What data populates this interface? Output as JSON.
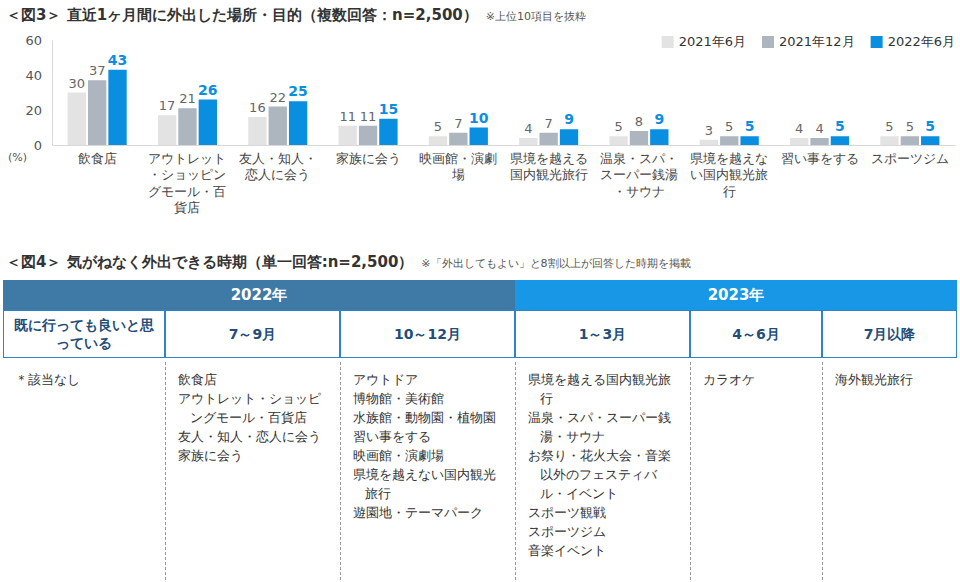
{
  "chart_data": {
    "type": "bar",
    "title": "＜図3＞ 直近1ヶ月間に外出した場所・目的（複数回答：n=2,500）",
    "subtitle": "※上位10項目を抜粋",
    "y_label": "(%)",
    "categories": [
      "飲食店",
      "アウトレット・ショッピングモール・百貨店",
      "友人・知人・恋人に会う",
      "家族に会う",
      "映画館・演劇場",
      "県境を越える国内観光旅行",
      "温泉・スパ・スーパー銭湯・サウナ",
      "県境を越えない国内観光旅行",
      "習い事をする",
      "スポーツジム"
    ],
    "series": [
      {
        "name": "2021年6月",
        "color": "#e3e3e3",
        "values": [
          30,
          17,
          16,
          11,
          5,
          4,
          5,
          3,
          4,
          5
        ]
      },
      {
        "name": "2021年12月",
        "color": "#adb5bf",
        "values": [
          37,
          21,
          22,
          11,
          7,
          7,
          8,
          5,
          4,
          5
        ]
      },
      {
        "name": "2022年6月",
        "color": "#0a8ee0",
        "values": [
          43,
          26,
          25,
          15,
          10,
          9,
          9,
          5,
          5,
          5
        ]
      }
    ],
    "ylim": [
      0,
      60
    ],
    "yticks": [
      0,
      20,
      40,
      60
    ],
    "grid": false,
    "legend": "top-right",
    "data_labels": true
  },
  "table": {
    "title": "＜図4＞ 気がねなく外出できる時期（単一回答:n=2,500）",
    "note": "※「外出してもよい」と8割以上が回答した時期を掲載",
    "years": [
      {
        "label": "2022年",
        "periods": [
          {
            "label": "既に行っても良いと思っている",
            "items": [
              "＊該当なし"
            ]
          },
          {
            "label": "7～9月",
            "items": [
              "飲食店",
              "アウトレット・ショッピングモール・百貨店",
              "友人・知人・恋人に会う",
              "家族に会う"
            ]
          },
          {
            "label": "10～12月",
            "items": [
              "アウトドア",
              "博物館・美術館",
              "水族館・動物園・植物園",
              "習い事をする",
              "映画館・演劇場",
              "県境を越えない国内観光旅行",
              "遊園地・テーマパーク"
            ]
          }
        ]
      },
      {
        "label": "2023年",
        "periods": [
          {
            "label": "1～3月",
            "items": [
              "県境を越える国内観光旅行",
              "温泉・スパ・スーパー銭湯・サウナ",
              "お祭り・花火大会・音楽以外のフェスティバル・イベント",
              "スポーツ観戦",
              "スポーツジム",
              "音楽イベント"
            ]
          },
          {
            "label": "4～6月",
            "items": [
              "カラオケ"
            ]
          },
          {
            "label": "7月以降",
            "items": [
              "海外観光旅行"
            ]
          }
        ]
      }
    ]
  }
}
